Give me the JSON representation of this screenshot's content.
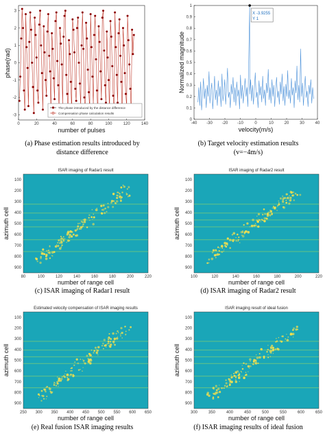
{
  "panels": {
    "a": {
      "caption_line1": "(a) Phase estimation results introduced by",
      "caption_line2": "distance difference",
      "ylabel": "phase(rad)",
      "xlabel": "number of pulses",
      "legend": [
        "The phase introduced by the distance difference",
        "Compensation phase calculation results"
      ],
      "xticks": [
        "0",
        "20",
        "40",
        "60",
        "80",
        "100",
        "120",
        "140"
      ],
      "yticks": [
        "3",
        "2",
        "1",
        "0",
        "-1",
        "-2",
        "-3"
      ]
    },
    "b": {
      "caption_line1": "(b) Target velocity estimation results",
      "caption_line2": "(v=−4m/s)",
      "ylabel": "Normalized magnitude",
      "xlabel": "velocity(m/s)",
      "datatip_x": "X -3.9255",
      "datatip_y": "Y 1",
      "xticks": [
        "-40",
        "-30",
        "-20",
        "-10",
        "0",
        "10",
        "20",
        "30",
        "40"
      ],
      "yticks": [
        "1",
        "0.9",
        "0.8",
        "0.7",
        "0.6",
        "0.5",
        "0.4",
        "0.3",
        "0.2",
        "0.1",
        "0"
      ]
    },
    "c": {
      "title": "ISAR imaging of Radar1 result",
      "caption": "(c) ISAR imaging of Radar1 result",
      "ylabel": "azimuth cell",
      "xlabel": "number of range cell",
      "xticks": [
        "80",
        "100",
        "120",
        "140",
        "160",
        "180",
        "200",
        "220"
      ],
      "yticks": [
        "100",
        "200",
        "300",
        "400",
        "500",
        "600",
        "700",
        "800",
        "900"
      ]
    },
    "d": {
      "title": "ISAR imaging of Radar2 result",
      "caption": "(d) ISAR imaging of Radar2 result",
      "ylabel": "azimuth cell",
      "xlabel": "number of range cell",
      "xticks": [
        "100",
        "120",
        "140",
        "160",
        "180",
        "200",
        "220"
      ],
      "yticks": [
        "100",
        "200",
        "300",
        "400",
        "500",
        "600",
        "700",
        "800",
        "900"
      ]
    },
    "e": {
      "title": "Estimated velocity compensation of ISAR imaging results",
      "caption": "(e) Real fusion ISAR imaging results",
      "ylabel": "azimuth cell",
      "xlabel": "number of range cell",
      "xticks": [
        "250",
        "300",
        "350",
        "400",
        "450",
        "500",
        "550",
        "600",
        "650"
      ],
      "yticks": [
        "100",
        "200",
        "300",
        "400",
        "500",
        "600",
        "700",
        "800",
        "900"
      ]
    },
    "f": {
      "title": "ISAR imaging result of ideal fusion",
      "caption": "(f) ISAR imaging results of ideal fusion",
      "ylabel": "azimuth cell",
      "xlabel": "number of range cell",
      "xticks": [
        "300",
        "350",
        "400",
        "450",
        "500",
        "550",
        "600",
        "650"
      ],
      "yticks": [
        "100",
        "200",
        "300",
        "400",
        "500",
        "600",
        "700",
        "800",
        "900"
      ]
    }
  },
  "colors": {
    "phase_line": "#c0392b",
    "phase_marker": "#8b0000",
    "spectrum_line": "#4a90d9",
    "isar_background": "#1aa6b8",
    "isar_stripe": "#8ed36a",
    "isar_target": "#f4e04d"
  },
  "chart_data": [
    {
      "type": "line",
      "panel": "a",
      "xlabel": "number of pulses",
      "ylabel": "phase(rad)",
      "xlim": [
        0,
        140
      ],
      "ylim": [
        -3.3,
        3.3
      ],
      "series": [
        {
          "name": "The phase introduced by the distance difference",
          "x": [
            1,
            2,
            3,
            4,
            5,
            6,
            7,
            8,
            9,
            10,
            11,
            12,
            13,
            14,
            15,
            16,
            17,
            18,
            19,
            20,
            21,
            22,
            23,
            24,
            25,
            26,
            27,
            28,
            29,
            30,
            31,
            32,
            33,
            34,
            35,
            36,
            37,
            38,
            39,
            40,
            41,
            42,
            43,
            44,
            45,
            46,
            47,
            48,
            49,
            50,
            51,
            52,
            53,
            54,
            55,
            56,
            57,
            58,
            59,
            60,
            61,
            62,
            63,
            64,
            65,
            66,
            67,
            68,
            69,
            70,
            71,
            72,
            73,
            74,
            75,
            76,
            77,
            78,
            79,
            80,
            81,
            82,
            83,
            84,
            85,
            86,
            87,
            88,
            89,
            90,
            91,
            92,
            93,
            94,
            95,
            96,
            97,
            98,
            99,
            100,
            101,
            102,
            103,
            104,
            105,
            106,
            107,
            108,
            109,
            110,
            111,
            112,
            113,
            114,
            115,
            116,
            117,
            118,
            119,
            120,
            121,
            122,
            123,
            124,
            125,
            126,
            127,
            128
          ],
          "values": [
            -2.2,
            -0.8,
            1.4,
            3.1,
            2.0,
            -1.6,
            -2.7,
            2.8,
            0.9,
            -0.3,
            -2.5,
            1.2,
            2.9,
            1.9,
            0.0,
            -1.4,
            -2.9,
            2.6,
            1.6,
            0.3,
            -1.6,
            -2.3,
            2.2,
            3.0,
            1.0,
            -0.6,
            -2.7,
            2.1,
            0.6,
            -1.0,
            -1.9,
            1.8,
            2.8,
            0.4,
            -0.5,
            -2.8,
            1.7,
            0.8,
            -0.9,
            -2.1,
            2.4,
            2.9,
            0.1,
            -1.3,
            -2.6,
            2.0,
            1.1,
            -0.1,
            -2.4,
            1.5,
            2.7,
            3.0,
            -0.7,
            -1.8,
            -2.9,
            1.3,
            0.5,
            -1.1,
            -2.8,
            2.5,
            1.9,
            0.6,
            -1.5,
            -2.2,
            2.0,
            2.6,
            0.0,
            -1.2,
            -2.5,
            1.0,
            2.9,
            0.8,
            -2.0,
            -3.0,
            2.3,
            1.4,
            -0.4,
            -1.7,
            -2.7,
            2.8,
            0.9,
            -0.8,
            -2.4,
            1.6,
            2.7,
            0.2,
            -1.6,
            -3.0,
            2.1,
            1.2,
            -0.5,
            -2.1,
            2.6,
            3.0,
            0.7,
            -1.3,
            -2.3,
            1.8,
            0.3,
            -1.0,
            -2.8,
            2.4,
            1.5,
            -0.2,
            -1.9,
            -2.6,
            2.9,
            0.9,
            -0.7,
            -2.3,
            1.7,
            2.5,
            0.4,
            -1.1,
            -2.9,
            2.0,
            1.0,
            -0.6,
            -1.8,
            -2.5,
            2.7,
            1.3,
            -0.1,
            -1.5,
            -2.7,
            1.9,
            0.5,
            1.6
          ]
        }
      ]
    },
    {
      "type": "line",
      "panel": "b",
      "xlabel": "velocity(m/s)",
      "ylabel": "Normalized magnitude",
      "xlim": [
        -40,
        40
      ],
      "ylim": [
        0,
        1
      ],
      "peak": {
        "x": -3.9255,
        "y": 1
      },
      "series": [
        {
          "name": "",
          "x_start": -37.5,
          "x_step": 0.6,
          "values": [
            0.15,
            0.28,
            0.12,
            0.33,
            0.08,
            0.22,
            0.36,
            0.18,
            0.27,
            0.1,
            0.3,
            0.2,
            0.42,
            0.14,
            0.25,
            0.32,
            0.09,
            0.21,
            0.38,
            0.17,
            0.26,
            0.12,
            0.34,
            0.2,
            0.29,
            0.11,
            0.4,
            0.16,
            0.23,
            0.35,
            0.13,
            0.27,
            0.45,
            0.19,
            0.24,
            0.1,
            0.31,
            0.22,
            0.37,
            0.15,
            0.28,
            0.12,
            0.33,
            0.2,
            0.26,
            0.09,
            0.39,
            0.18,
            0.3,
            0.14,
            0.25,
            0.36,
            0.2,
            0.28,
            0.11,
            1.0,
            0.22,
            0.35,
            0.16,
            0.3,
            0.13,
            0.27,
            0.41,
            0.19,
            0.24,
            0.1,
            0.34,
            0.21,
            0.29,
            0.15,
            0.38,
            0.18,
            0.26,
            0.12,
            0.32,
            0.23,
            0.44,
            0.17,
            0.28,
            0.14,
            0.35,
            0.2,
            0.3,
            0.11,
            0.27,
            0.37,
            0.19,
            0.25,
            0.13,
            0.33,
            0.22,
            0.4,
            0.16,
            0.29,
            0.12,
            0.31,
            0.2,
            0.43,
            0.18,
            0.26,
            0.14,
            0.36,
            0.21,
            0.28,
            0.1,
            0.34,
            0.23,
            0.47,
            0.17,
            0.3,
            0.15,
            0.62,
            0.2,
            0.32,
            0.12,
            0.27,
            0.38,
            0.19,
            0.25,
            0.11,
            0.3,
            0.22,
            0.35,
            0.14,
            0.28,
            0.18
          ]
        }
      ]
    }
  ]
}
